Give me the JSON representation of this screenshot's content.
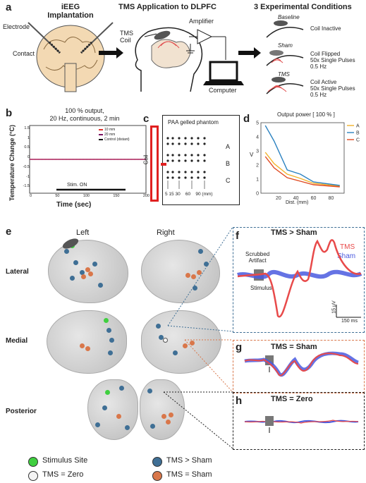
{
  "panel_a": {
    "label": "a",
    "ieeg_title": [
      "iEEG",
      "Implantation"
    ],
    "tms_title": "TMS Application to DLPFC",
    "cond_title": "3 Experimental Conditions",
    "electrode": "Electrode",
    "contact": "Contact",
    "tms_coil": [
      "TMS",
      "Coil"
    ],
    "amplifier": "Amplifier",
    "computer": "Computer",
    "conditions": [
      {
        "name": "Baseline",
        "desc": [
          "Coil Inactive"
        ]
      },
      {
        "name": "Sham",
        "desc": [
          "Coil Flipped",
          "50x Single Pulses",
          "0.5 Hz"
        ]
      },
      {
        "name": "TMS",
        "desc": [
          "Coil Active",
          "50x Single Pulses",
          "0.5 Hz"
        ]
      }
    ]
  },
  "panel_b": {
    "label": "b",
    "title": [
      "100 % output,",
      "20 Hz, continuous, 2 min"
    ],
    "ylabel": "Temperature Change (°C)",
    "xlabel": "Time (sec)",
    "yticks": [
      "1.5",
      "1",
      "0.5",
      "0",
      "-0.5",
      "-1",
      "-1.5"
    ],
    "xticks": [
      "0",
      "50",
      "100",
      "150",
      "200"
    ],
    "legend": [
      {
        "name": "10 mm",
        "color": "#e0302a"
      },
      {
        "name": "20 mm",
        "color": "#7a1060"
      },
      {
        "name": "Control (distant)",
        "color": "#111111"
      }
    ],
    "stim_label": "Stim. ON"
  },
  "panel_c": {
    "label": "c",
    "title": "PAA gelled phantom",
    "coil": "Coil",
    "rows": [
      "A",
      "B",
      "C"
    ],
    "distances": "5 15 30    60    90 (mm)"
  },
  "panel_d": {
    "label": "d",
    "ylabel": "V",
    "xlabel": "Dist. (mm)"
  },
  "chart_data": {
    "type": "line",
    "title": "Output power [ 100 % ]",
    "xlabel": "Dist. (mm)",
    "ylabel": "V",
    "xlim": [
      0,
      95
    ],
    "ylim": [
      0,
      5
    ],
    "xticks": [
      20,
      40,
      60,
      80
    ],
    "yticks": [
      0,
      1,
      2,
      3,
      4,
      5
    ],
    "legend_position": "right",
    "x": [
      5,
      15,
      30,
      45,
      60,
      90
    ],
    "series": [
      {
        "name": "A",
        "color": "#f2b22a",
        "values": [
          2.9,
          2.1,
          1.35,
          1.05,
          0.7,
          0.5
        ]
      },
      {
        "name": "B",
        "color": "#2c82c0",
        "values": [
          4.8,
          3.7,
          1.65,
          1.35,
          0.8,
          0.55
        ]
      },
      {
        "name": "C",
        "color": "#e04a22",
        "values": [
          2.6,
          1.8,
          1.1,
          0.85,
          0.6,
          0.45
        ]
      }
    ]
  },
  "panel_e": {
    "label": "e",
    "left": "Left",
    "right": "Right",
    "rows": [
      "Lateral",
      "Medial",
      "Posterior"
    ],
    "legend": [
      {
        "name": "Stimulus Site",
        "color": "#3fcf3f"
      },
      {
        "name": "TMS = Zero",
        "color": "#f4f4f4"
      },
      {
        "name": "TMS > Sham",
        "color": "#3f6f95"
      },
      {
        "name": "TMS = Sham",
        "color": "#d9774a"
      }
    ]
  },
  "panel_f": {
    "label": "f",
    "title": "TMS > Sham",
    "tms": "TMS",
    "sham": "Sham",
    "artifact": [
      "Scrubbed",
      "Artifact"
    ],
    "stimulus": "Stimulus",
    "scale_v": "15 μV",
    "scale_t": "150 ms",
    "tms_color": "#e84a4a",
    "sham_color": "#4a5adf"
  },
  "panel_g": {
    "label": "g",
    "title": "TMS = Sham"
  },
  "panel_h": {
    "label": "h",
    "title": "TMS = Zero"
  }
}
